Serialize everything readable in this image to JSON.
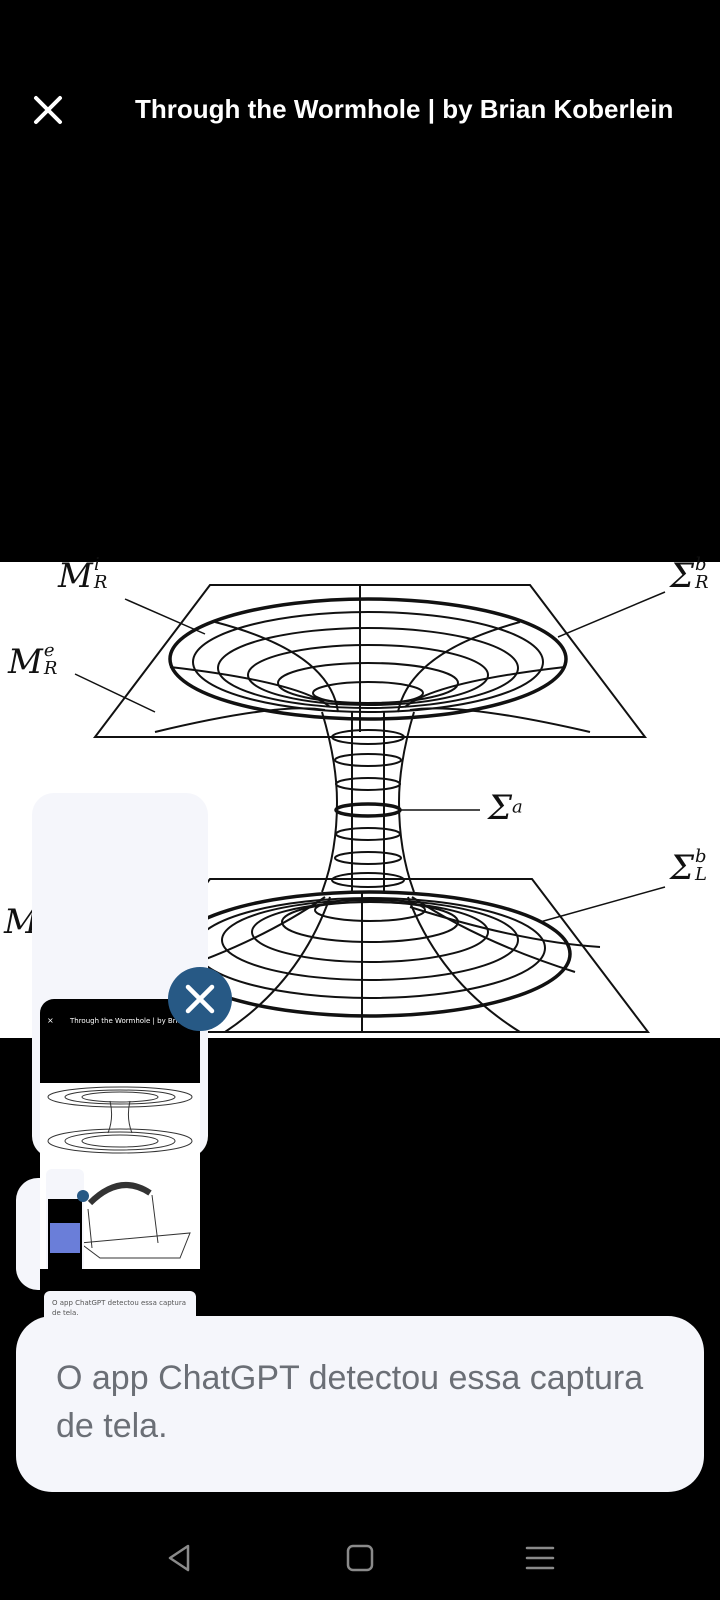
{
  "header": {
    "close_icon": "close-icon",
    "title": "Through the Wormhole | by Brian Koberlein"
  },
  "figure": {
    "labels": {
      "m_r_i": {
        "base": "M",
        "sup": "i",
        "sub": "R"
      },
      "m_r_e": {
        "base": "M",
        "sup": "e",
        "sub": "R"
      },
      "sigma_r_b": {
        "base": "Σ",
        "sup": "b",
        "sub": "R"
      },
      "sigma_a": {
        "base": "Σ",
        "sup": "a"
      },
      "sigma_l_b": {
        "base": "Σ",
        "sup": "b",
        "sub": "L"
      },
      "m_partial": "M"
    }
  },
  "screenshot_preview": {
    "thumb_title": "Through the Wormhole | by Brian Kobe",
    "thumb_close": "×",
    "thumb_message": "O app ChatGPT detectou essa captura de tela.",
    "thumb_nav": [
      "<",
      "▢",
      "≡"
    ],
    "dismiss_icon": "close-icon"
  },
  "toast": {
    "message": "O app ChatGPT detectou essa captura de tela."
  },
  "navbar": {
    "back_icon": "back-triangle-icon",
    "home_icon": "home-square-icon",
    "recents_icon": "recents-lines-icon"
  },
  "colors": {
    "background": "#000000",
    "card": "#f5f6fb",
    "dismiss": "#275985",
    "toast_text": "#6b6f76"
  }
}
